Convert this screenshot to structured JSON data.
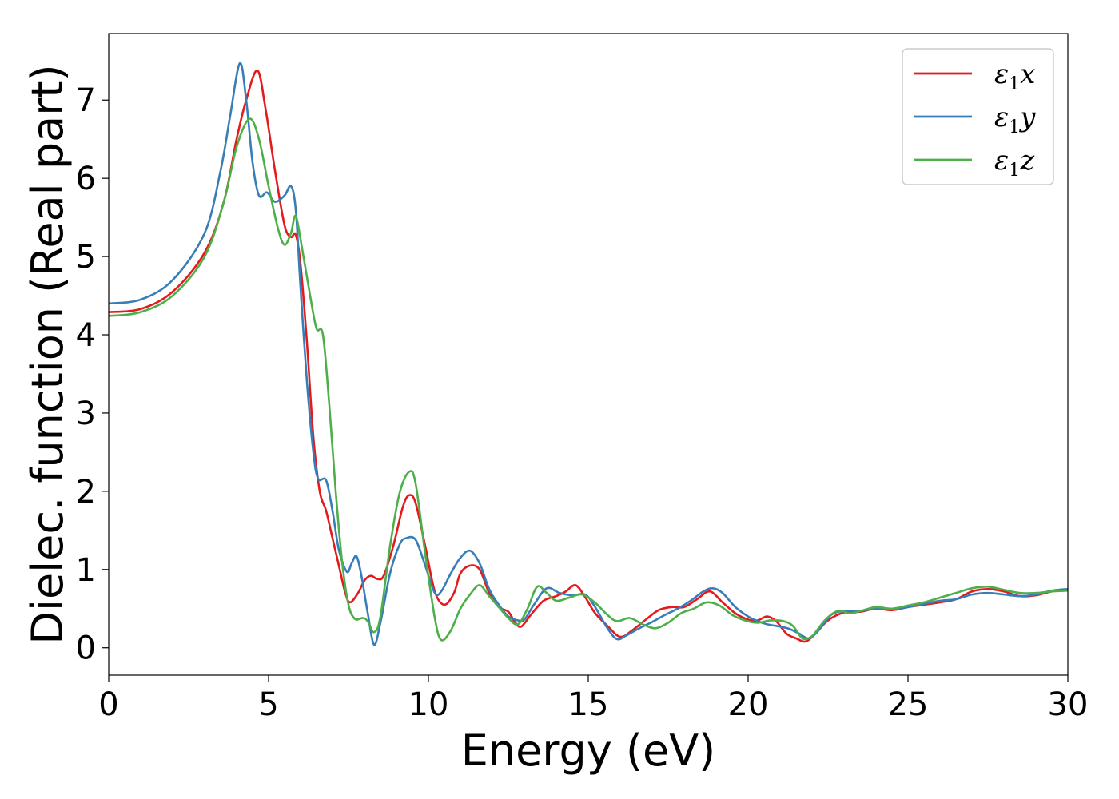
{
  "chart_data": {
    "type": "line",
    "title": "",
    "xlabel": "Energy (eV)",
    "ylabel": "Dielec. function (Real part)",
    "xlim": [
      0,
      30
    ],
    "ylim": [
      -0.35,
      7.85
    ],
    "xticks": [
      0,
      5,
      10,
      15,
      20,
      25,
      30
    ],
    "yticks": [
      0,
      1,
      2,
      3,
      4,
      5,
      6,
      7
    ],
    "grid": false,
    "legend_position": "top-right",
    "series": [
      {
        "name": "ε1x",
        "symbol": "ε",
        "subscript": "1",
        "suffix": "x",
        "color": "#e41a1c",
        "points": [
          [
            0,
            4.29
          ],
          [
            1,
            4.33
          ],
          [
            2,
            4.55
          ],
          [
            3,
            5.05
          ],
          [
            3.6,
            5.7
          ],
          [
            4,
            6.5
          ],
          [
            4.3,
            7.0
          ],
          [
            4.65,
            7.38
          ],
          [
            4.9,
            6.9
          ],
          [
            5.2,
            6.1
          ],
          [
            5.5,
            5.4
          ],
          [
            5.7,
            5.25
          ],
          [
            5.85,
            5.28
          ],
          [
            6.0,
            4.9
          ],
          [
            6.2,
            3.9
          ],
          [
            6.4,
            2.7
          ],
          [
            6.6,
            2.0
          ],
          [
            6.8,
            1.75
          ],
          [
            7.0,
            1.4
          ],
          [
            7.2,
            1.05
          ],
          [
            7.4,
            0.7
          ],
          [
            7.55,
            0.58
          ],
          [
            7.8,
            0.7
          ],
          [
            8.0,
            0.86
          ],
          [
            8.2,
            0.92
          ],
          [
            8.4,
            0.88
          ],
          [
            8.6,
            0.92
          ],
          [
            8.9,
            1.3
          ],
          [
            9.2,
            1.8
          ],
          [
            9.4,
            1.95
          ],
          [
            9.6,
            1.85
          ],
          [
            9.9,
            1.3
          ],
          [
            10.2,
            0.72
          ],
          [
            10.5,
            0.55
          ],
          [
            10.8,
            0.7
          ],
          [
            11.0,
            0.95
          ],
          [
            11.3,
            1.05
          ],
          [
            11.6,
            1.0
          ],
          [
            11.9,
            0.7
          ],
          [
            12.2,
            0.52
          ],
          [
            12.5,
            0.46
          ],
          [
            12.7,
            0.33
          ],
          [
            12.9,
            0.27
          ],
          [
            13.2,
            0.42
          ],
          [
            13.6,
            0.6
          ],
          [
            14.0,
            0.66
          ],
          [
            14.3,
            0.72
          ],
          [
            14.6,
            0.8
          ],
          [
            14.9,
            0.65
          ],
          [
            15.2,
            0.45
          ],
          [
            15.6,
            0.28
          ],
          [
            16.0,
            0.14
          ],
          [
            16.4,
            0.23
          ],
          [
            16.8,
            0.36
          ],
          [
            17.2,
            0.48
          ],
          [
            17.6,
            0.52
          ],
          [
            18.0,
            0.52
          ],
          [
            18.4,
            0.62
          ],
          [
            18.8,
            0.72
          ],
          [
            19.2,
            0.58
          ],
          [
            19.6,
            0.44
          ],
          [
            20.0,
            0.36
          ],
          [
            20.3,
            0.35
          ],
          [
            20.6,
            0.4
          ],
          [
            20.9,
            0.33
          ],
          [
            21.2,
            0.18
          ],
          [
            21.5,
            0.12
          ],
          [
            21.8,
            0.08
          ],
          [
            22.1,
            0.18
          ],
          [
            22.5,
            0.35
          ],
          [
            23.0,
            0.45
          ],
          [
            23.5,
            0.46
          ],
          [
            24.0,
            0.5
          ],
          [
            24.5,
            0.48
          ],
          [
            25.0,
            0.52
          ],
          [
            25.5,
            0.55
          ],
          [
            26.0,
            0.58
          ],
          [
            26.5,
            0.62
          ],
          [
            27.0,
            0.72
          ],
          [
            27.5,
            0.75
          ],
          [
            28.0,
            0.72
          ],
          [
            28.5,
            0.66
          ],
          [
            29.0,
            0.67
          ],
          [
            29.5,
            0.72
          ],
          [
            30.0,
            0.74
          ]
        ]
      },
      {
        "name": "ε1y",
        "symbol": "ε",
        "subscript": "1",
        "suffix": "y",
        "color": "#377eb8",
        "points": [
          [
            0,
            4.4
          ],
          [
            1,
            4.45
          ],
          [
            2,
            4.7
          ],
          [
            3,
            5.3
          ],
          [
            3.5,
            6.1
          ],
          [
            3.8,
            6.8
          ],
          [
            4.1,
            7.47
          ],
          [
            4.3,
            7.0
          ],
          [
            4.5,
            6.2
          ],
          [
            4.7,
            5.78
          ],
          [
            4.95,
            5.82
          ],
          [
            5.2,
            5.7
          ],
          [
            5.5,
            5.78
          ],
          [
            5.7,
            5.9
          ],
          [
            5.85,
            5.6
          ],
          [
            6.0,
            4.6
          ],
          [
            6.2,
            3.4
          ],
          [
            6.4,
            2.5
          ],
          [
            6.55,
            2.16
          ],
          [
            6.8,
            2.14
          ],
          [
            7.0,
            1.75
          ],
          [
            7.2,
            1.25
          ],
          [
            7.45,
            0.97
          ],
          [
            7.6,
            1.08
          ],
          [
            7.75,
            1.17
          ],
          [
            7.9,
            0.93
          ],
          [
            8.1,
            0.45
          ],
          [
            8.3,
            0.04
          ],
          [
            8.5,
            0.32
          ],
          [
            8.8,
            0.95
          ],
          [
            9.1,
            1.32
          ],
          [
            9.3,
            1.4
          ],
          [
            9.6,
            1.38
          ],
          [
            9.9,
            1.05
          ],
          [
            10.2,
            0.7
          ],
          [
            10.4,
            0.72
          ],
          [
            10.7,
            0.95
          ],
          [
            11.0,
            1.15
          ],
          [
            11.3,
            1.24
          ],
          [
            11.6,
            1.08
          ],
          [
            11.9,
            0.75
          ],
          [
            12.2,
            0.55
          ],
          [
            12.5,
            0.4
          ],
          [
            12.8,
            0.35
          ],
          [
            13.0,
            0.36
          ],
          [
            13.3,
            0.55
          ],
          [
            13.7,
            0.76
          ],
          [
            14.1,
            0.7
          ],
          [
            14.5,
            0.67
          ],
          [
            14.9,
            0.68
          ],
          [
            15.2,
            0.53
          ],
          [
            15.6,
            0.25
          ],
          [
            15.9,
            0.11
          ],
          [
            16.2,
            0.16
          ],
          [
            16.6,
            0.25
          ],
          [
            17.0,
            0.33
          ],
          [
            17.4,
            0.42
          ],
          [
            17.8,
            0.5
          ],
          [
            18.2,
            0.6
          ],
          [
            18.6,
            0.72
          ],
          [
            18.9,
            0.76
          ],
          [
            19.2,
            0.7
          ],
          [
            19.6,
            0.52
          ],
          [
            20.0,
            0.4
          ],
          [
            20.3,
            0.34
          ],
          [
            20.6,
            0.3
          ],
          [
            21.0,
            0.27
          ],
          [
            21.3,
            0.24
          ],
          [
            21.6,
            0.18
          ],
          [
            21.9,
            0.12
          ],
          [
            22.2,
            0.22
          ],
          [
            22.6,
            0.42
          ],
          [
            23.0,
            0.47
          ],
          [
            23.5,
            0.47
          ],
          [
            24.0,
            0.5
          ],
          [
            24.5,
            0.49
          ],
          [
            25.0,
            0.52
          ],
          [
            25.5,
            0.56
          ],
          [
            26.0,
            0.6
          ],
          [
            26.5,
            0.62
          ],
          [
            27.0,
            0.68
          ],
          [
            27.5,
            0.7
          ],
          [
            28.0,
            0.68
          ],
          [
            28.5,
            0.66
          ],
          [
            29.0,
            0.68
          ],
          [
            29.5,
            0.73
          ],
          [
            30.0,
            0.75
          ]
        ]
      },
      {
        "name": "ε1z",
        "symbol": "ε",
        "subscript": "1",
        "suffix": "z",
        "color": "#4daf4a",
        "points": [
          [
            0,
            4.24
          ],
          [
            1,
            4.29
          ],
          [
            2,
            4.5
          ],
          [
            3,
            5.0
          ],
          [
            3.6,
            5.7
          ],
          [
            4.0,
            6.4
          ],
          [
            4.4,
            6.76
          ],
          [
            4.7,
            6.5
          ],
          [
            5.0,
            5.9
          ],
          [
            5.3,
            5.35
          ],
          [
            5.5,
            5.15
          ],
          [
            5.7,
            5.3
          ],
          [
            5.85,
            5.52
          ],
          [
            6.05,
            5.1
          ],
          [
            6.3,
            4.5
          ],
          [
            6.5,
            4.08
          ],
          [
            6.7,
            4.0
          ],
          [
            6.9,
            3.1
          ],
          [
            7.1,
            2.0
          ],
          [
            7.3,
            1.1
          ],
          [
            7.5,
            0.55
          ],
          [
            7.7,
            0.37
          ],
          [
            7.95,
            0.38
          ],
          [
            8.1,
            0.34
          ],
          [
            8.3,
            0.2
          ],
          [
            8.5,
            0.4
          ],
          [
            8.8,
            1.3
          ],
          [
            9.1,
            1.98
          ],
          [
            9.4,
            2.25
          ],
          [
            9.6,
            2.1
          ],
          [
            9.9,
            1.2
          ],
          [
            10.2,
            0.38
          ],
          [
            10.4,
            0.1
          ],
          [
            10.7,
            0.22
          ],
          [
            11.0,
            0.5
          ],
          [
            11.3,
            0.68
          ],
          [
            11.6,
            0.8
          ],
          [
            11.9,
            0.66
          ],
          [
            12.2,
            0.52
          ],
          [
            12.5,
            0.38
          ],
          [
            12.8,
            0.3
          ],
          [
            13.1,
            0.5
          ],
          [
            13.4,
            0.78
          ],
          [
            13.7,
            0.7
          ],
          [
            14.0,
            0.6
          ],
          [
            14.4,
            0.64
          ],
          [
            14.8,
            0.68
          ],
          [
            15.2,
            0.58
          ],
          [
            15.6,
            0.42
          ],
          [
            15.9,
            0.34
          ],
          [
            16.3,
            0.38
          ],
          [
            16.7,
            0.3
          ],
          [
            17.1,
            0.25
          ],
          [
            17.5,
            0.32
          ],
          [
            17.9,
            0.44
          ],
          [
            18.3,
            0.5
          ],
          [
            18.7,
            0.58
          ],
          [
            19.1,
            0.54
          ],
          [
            19.5,
            0.42
          ],
          [
            19.9,
            0.35
          ],
          [
            20.3,
            0.32
          ],
          [
            20.7,
            0.35
          ],
          [
            21.1,
            0.34
          ],
          [
            21.4,
            0.28
          ],
          [
            21.7,
            0.12
          ],
          [
            22.0,
            0.15
          ],
          [
            22.4,
            0.35
          ],
          [
            22.8,
            0.47
          ],
          [
            23.2,
            0.44
          ],
          [
            23.6,
            0.48
          ],
          [
            24.0,
            0.52
          ],
          [
            24.5,
            0.5
          ],
          [
            25.0,
            0.54
          ],
          [
            25.5,
            0.58
          ],
          [
            26.0,
            0.64
          ],
          [
            26.5,
            0.7
          ],
          [
            27.0,
            0.76
          ],
          [
            27.5,
            0.78
          ],
          [
            28.0,
            0.74
          ],
          [
            28.5,
            0.7
          ],
          [
            29.0,
            0.7
          ],
          [
            29.5,
            0.72
          ],
          [
            30.0,
            0.73
          ]
        ]
      }
    ]
  }
}
